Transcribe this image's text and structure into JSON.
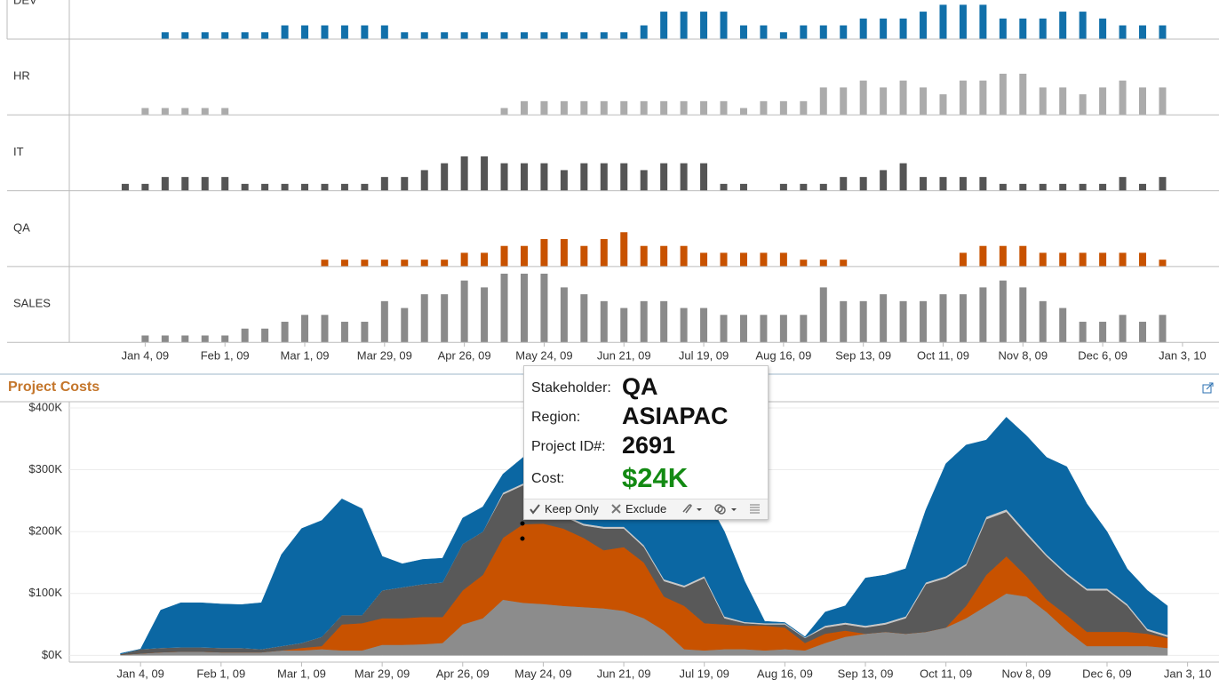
{
  "chart_data": [
    {
      "type": "bar",
      "x": [
        "2008-12-28",
        "2009-01-04",
        "2009-01-11",
        "2009-01-18",
        "2009-01-25",
        "2009-02-01",
        "2009-02-08",
        "2009-02-15",
        "2009-02-22",
        "2009-03-01",
        "2009-03-08",
        "2009-03-15",
        "2009-03-22",
        "2009-03-29",
        "2009-04-05",
        "2009-04-12",
        "2009-04-19",
        "2009-04-26",
        "2009-05-03",
        "2009-05-10",
        "2009-05-17",
        "2009-05-24",
        "2009-05-31",
        "2009-06-07",
        "2009-06-14",
        "2009-06-21",
        "2009-06-28",
        "2009-07-05",
        "2009-07-12",
        "2009-07-19",
        "2009-07-26",
        "2009-08-02",
        "2009-08-09",
        "2009-08-16",
        "2009-08-23",
        "2009-08-30",
        "2009-09-06",
        "2009-09-13",
        "2009-09-20",
        "2009-09-27",
        "2009-10-04",
        "2009-10-11",
        "2009-10-18",
        "2009-10-25",
        "2009-11-01",
        "2009-11-08",
        "2009-11-15",
        "2009-11-22",
        "2009-11-29",
        "2009-12-06",
        "2009-12-13",
        "2009-12-20",
        "2009-12-27"
      ],
      "xlim": [
        "2008-12-09",
        "2010-01-13"
      ],
      "xticks": [
        {
          "value": "2009-01-04",
          "label": "Jan 4, 09"
        },
        {
          "value": "2009-02-01",
          "label": "Feb 1, 09"
        },
        {
          "value": "2009-03-01",
          "label": "Mar 1, 09"
        },
        {
          "value": "2009-03-29",
          "label": "Mar 29, 09"
        },
        {
          "value": "2009-04-26",
          "label": "Apr 26, 09"
        },
        {
          "value": "2009-05-24",
          "label": "May 24, 09"
        },
        {
          "value": "2009-06-21",
          "label": "Jun 21, 09"
        },
        {
          "value": "2009-07-19",
          "label": "Jul 19, 09"
        },
        {
          "value": "2009-08-16",
          "label": "Aug 16, 09"
        },
        {
          "value": "2009-09-13",
          "label": "Sep 13, 09"
        },
        {
          "value": "2009-10-11",
          "label": "Oct 11, 09"
        },
        {
          "value": "2009-11-08",
          "label": "Nov 8, 09"
        },
        {
          "value": "2009-12-06",
          "label": "Dec 6, 09"
        },
        {
          "value": "2010-01-03",
          "label": "Jan 3, 10"
        }
      ],
      "ylim": [
        0,
        11
      ],
      "series": [
        {
          "name": "DEV",
          "color": "#1170aa",
          "values": [
            null,
            null,
            1,
            1,
            1,
            1,
            1,
            1,
            2,
            2,
            2,
            2,
            2,
            2,
            1,
            1,
            1,
            1,
            1,
            1,
            1,
            1,
            1,
            1,
            1,
            1,
            2,
            4,
            4,
            4,
            4,
            2,
            2,
            1,
            2,
            2,
            2,
            3,
            3,
            3,
            4,
            5,
            5,
            5,
            3,
            3,
            3,
            4,
            4,
            3,
            2,
            2,
            2
          ]
        },
        {
          "name": "HR",
          "color": "#ababab",
          "values": [
            null,
            1,
            1,
            1,
            1,
            1,
            null,
            null,
            null,
            null,
            null,
            null,
            null,
            null,
            null,
            null,
            null,
            null,
            null,
            1,
            2,
            2,
            2,
            2,
            2,
            2,
            2,
            2,
            2,
            2,
            2,
            1,
            2,
            2,
            2,
            4,
            4,
            5,
            4,
            5,
            4,
            3,
            5,
            5,
            6,
            6,
            4,
            4,
            3,
            4,
            5,
            4,
            4
          ]
        },
        {
          "name": "IT",
          "color": "#555555",
          "values": [
            1,
            1,
            2,
            2,
            2,
            2,
            1,
            1,
            1,
            1,
            1,
            1,
            1,
            2,
            2,
            3,
            4,
            5,
            5,
            4,
            4,
            4,
            3,
            4,
            4,
            4,
            3,
            4,
            4,
            4,
            1,
            1,
            null,
            1,
            1,
            1,
            2,
            2,
            3,
            4,
            2,
            2,
            2,
            2,
            1,
            1,
            1,
            1,
            1,
            1,
            2,
            1,
            2
          ]
        },
        {
          "name": "QA",
          "color": "#c85200",
          "values": [
            null,
            null,
            null,
            null,
            null,
            null,
            null,
            null,
            null,
            null,
            1,
            1,
            1,
            1,
            1,
            1,
            1,
            2,
            2,
            3,
            3,
            4,
            4,
            3,
            4,
            5,
            3,
            3,
            3,
            2,
            2,
            2,
            2,
            2,
            1,
            1,
            1,
            null,
            null,
            null,
            null,
            null,
            2,
            3,
            3,
            3,
            2,
            2,
            2,
            2,
            2,
            2,
            1
          ]
        },
        {
          "name": "SALES",
          "color": "#8a8a8a",
          "values": [
            null,
            1,
            1,
            1,
            1,
            1,
            2,
            2,
            3,
            4,
            4,
            3,
            3,
            6,
            5,
            7,
            7,
            9,
            8,
            10,
            10,
            10,
            8,
            7,
            6,
            5,
            6,
            6,
            5,
            5,
            4,
            4,
            4,
            4,
            4,
            8,
            6,
            6,
            7,
            6,
            6,
            7,
            7,
            8,
            9,
            8,
            6,
            5,
            3,
            3,
            4,
            3,
            4
          ]
        }
      ]
    },
    {
      "type": "area",
      "title": "Project Costs",
      "stacked": true,
      "grid": true,
      "x": [
        "2008-12-28",
        "2009-01-04",
        "2009-01-11",
        "2009-01-18",
        "2009-01-25",
        "2009-02-01",
        "2009-02-08",
        "2009-02-15",
        "2009-02-22",
        "2009-03-01",
        "2009-03-08",
        "2009-03-15",
        "2009-03-22",
        "2009-03-29",
        "2009-04-05",
        "2009-04-12",
        "2009-04-19",
        "2009-04-26",
        "2009-05-03",
        "2009-05-10",
        "2009-05-17",
        "2009-05-24",
        "2009-05-31",
        "2009-06-07",
        "2009-06-14",
        "2009-06-21",
        "2009-06-28",
        "2009-07-05",
        "2009-07-12",
        "2009-07-19",
        "2009-07-26",
        "2009-08-02",
        "2009-08-09",
        "2009-08-16",
        "2009-08-23",
        "2009-08-30",
        "2009-09-06",
        "2009-09-13",
        "2009-09-20",
        "2009-09-27",
        "2009-10-04",
        "2009-10-11",
        "2009-10-18",
        "2009-10-25",
        "2009-11-01",
        "2009-11-08",
        "2009-11-15",
        "2009-11-22",
        "2009-11-29",
        "2009-12-06",
        "2009-12-13",
        "2009-12-20",
        "2009-12-27"
      ],
      "xlim": [
        "2008-12-09",
        "2010-01-13"
      ],
      "xticks": [
        {
          "value": "2009-01-04",
          "label": "Jan 4, 09"
        },
        {
          "value": "2009-02-01",
          "label": "Feb 1, 09"
        },
        {
          "value": "2009-03-01",
          "label": "Mar 1, 09"
        },
        {
          "value": "2009-03-29",
          "label": "Mar 29, 09"
        },
        {
          "value": "2009-04-26",
          "label": "Apr 26, 09"
        },
        {
          "value": "2009-05-24",
          "label": "May 24, 09"
        },
        {
          "value": "2009-06-21",
          "label": "Jun 21, 09"
        },
        {
          "value": "2009-07-19",
          "label": "Jul 19, 09"
        },
        {
          "value": "2009-08-16",
          "label": "Aug 16, 09"
        },
        {
          "value": "2009-09-13",
          "label": "Sep 13, 09"
        },
        {
          "value": "2009-10-11",
          "label": "Oct 11, 09"
        },
        {
          "value": "2009-11-08",
          "label": "Nov 8, 09"
        },
        {
          "value": "2009-12-06",
          "label": "Dec 6, 09"
        },
        {
          "value": "2010-01-03",
          "label": "Jan 3, 10"
        }
      ],
      "ylim": [
        -11,
        410
      ],
      "yticks": [
        {
          "value": 0,
          "label": "$0K"
        },
        {
          "value": 100,
          "label": "$100K"
        },
        {
          "value": 200,
          "label": "$200K"
        },
        {
          "value": 300,
          "label": "$300K"
        },
        {
          "value": 400,
          "label": "$400K"
        }
      ],
      "series": [
        {
          "color": "#8c8c8c",
          "values": [
            1,
            3,
            5,
            6,
            6,
            5,
            5,
            5,
            8,
            8,
            10,
            8,
            8,
            17,
            17,
            18,
            20,
            50,
            60,
            90,
            85,
            83,
            80,
            78,
            76,
            72,
            60,
            40,
            10,
            8,
            10,
            10,
            8,
            10,
            8,
            20,
            30,
            35,
            38,
            35,
            38,
            45,
            60,
            80,
            100,
            95,
            70,
            40,
            15,
            15,
            15,
            15,
            12
          ]
        },
        {
          "color": "#c85200",
          "values": [
            0,
            0,
            0,
            0,
            0,
            0,
            0,
            0,
            0,
            4,
            5,
            42,
            44,
            43,
            43,
            44,
            42,
            55,
            70,
            100,
            127,
            130,
            125,
            112,
            94,
            103,
            90,
            55,
            70,
            44,
            40,
            38,
            40,
            35,
            12,
            15,
            10,
            0,
            0,
            0,
            0,
            0,
            20,
            50,
            60,
            33,
            20,
            25,
            23,
            23,
            23,
            20,
            16
          ]
        },
        {
          "color": "#595959",
          "values": [
            1,
            7,
            7,
            7,
            7,
            7,
            7,
            5,
            7,
            8,
            15,
            15,
            13,
            45,
            50,
            53,
            56,
            75,
            70,
            70,
            63,
            17,
            20,
            20,
            35,
            30,
            25,
            25,
            30,
            73,
            10,
            4,
            2,
            5,
            8,
            10,
            10,
            10,
            12,
            25,
            77,
            80,
            65,
            90,
            72,
            67,
            70,
            65,
            67,
            67,
            42,
            5,
            2
          ]
        },
        {
          "color": "#c8c8c8",
          "values": [
            0,
            0,
            0,
            0,
            0,
            0,
            0,
            0,
            0,
            0,
            0,
            0,
            0,
            0,
            0,
            0,
            0,
            0,
            0,
            3,
            3,
            3,
            3,
            3,
            3,
            3,
            3,
            3,
            3,
            3,
            3,
            2,
            2,
            2,
            1,
            3,
            3,
            3,
            3,
            3,
            3,
            3,
            3,
            4,
            4,
            4,
            3,
            3,
            3,
            3,
            3,
            3,
            3
          ]
        },
        {
          "color": "#0b67a3",
          "values": [
            1,
            0,
            61,
            72,
            72,
            71,
            70,
            75,
            148,
            185,
            188,
            188,
            172,
            55,
            38,
            40,
            39,
            42,
            40,
            30,
            42,
            97,
            107,
            107,
            107,
            142,
            167,
            207,
            187,
            132,
            137,
            66,
            3,
            1,
            1,
            22,
            27,
            77,
            77,
            77,
            117,
            182,
            192,
            124,
            149,
            156,
            157,
            172,
            137,
            92,
            57,
            62,
            47
          ]
        }
      ]
    }
  ],
  "tooltip": {
    "rows": [
      {
        "label": "Stakeholder:",
        "value": "QA"
      },
      {
        "label": "Region:",
        "value": "ASIAPAC"
      },
      {
        "label": "Project ID#:",
        "value": "2691"
      },
      {
        "label": "Cost:",
        "value": "$24K"
      }
    ],
    "actions": [
      "Keep Only",
      "Exclude"
    ]
  }
}
